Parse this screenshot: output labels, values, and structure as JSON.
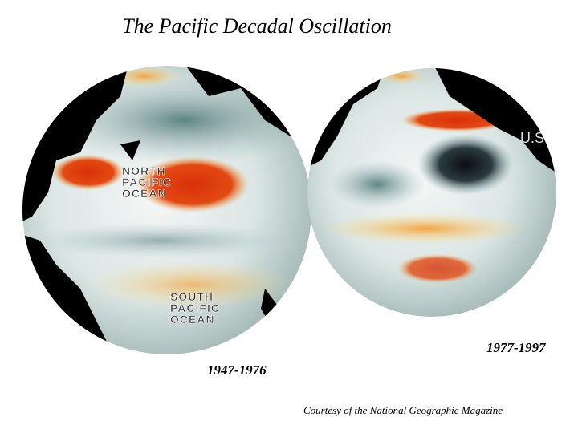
{
  "header": {
    "title": "The Pacific Decadal Oscillation"
  },
  "globes": [
    {
      "period": "1947-1976",
      "labels": [
        [
          "NORTH",
          "PACIFIC",
          "OCEAN"
        ],
        [
          "SOUTH",
          "PACIFIC",
          "OCEAN"
        ]
      ]
    },
    {
      "period": "1977-1997",
      "labels": [
        [
          "U.S."
        ]
      ]
    }
  ],
  "footer": {
    "credit": "Courtesy of the National Geographic Magazine"
  }
}
